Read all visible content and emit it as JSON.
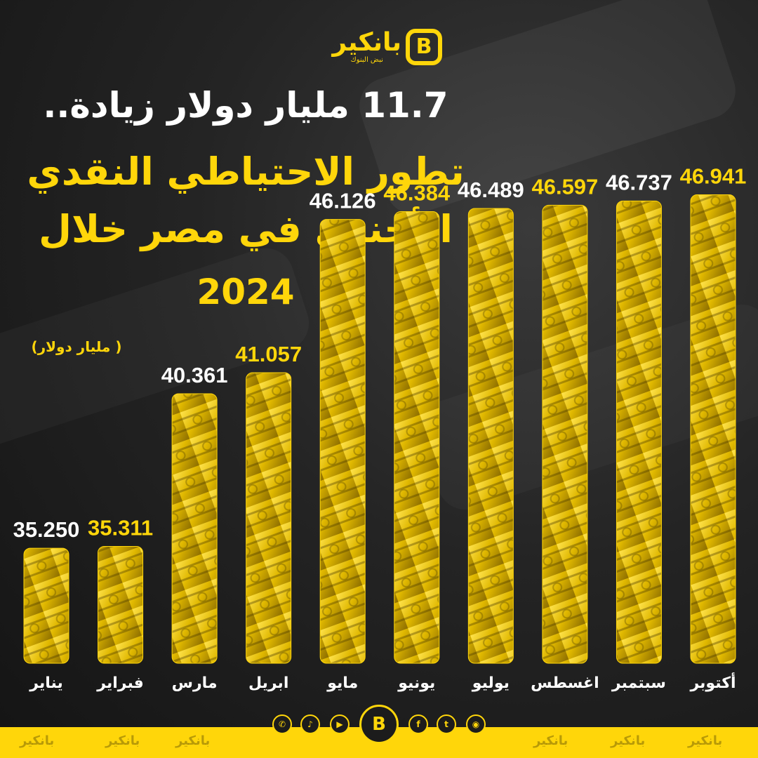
{
  "brand": {
    "name": "بانكير",
    "tagline": "نبض البنوك",
    "accent": "#ffd60a"
  },
  "title": {
    "line1": "11.7 مليار دولار زيادة..",
    "line2": "تطور الاحتياطي النقدي",
    "line3": "الأجنبي في مصر خلال",
    "line4": "2024"
  },
  "unit_label": "( مليار دولار)",
  "chart_data": {
    "type": "bar",
    "title": "تطور الاحتياطي النقدي الأجنبي في مصر خلال 2024",
    "ylabel": "( مليار دولار)",
    "categories": [
      "يناير",
      "فبراير",
      "مارس",
      "ابريل",
      "مايو",
      "يونيو",
      "يوليو",
      "اغسطس",
      "سبتمبر",
      "أكتوبر"
    ],
    "values": [
      35.25,
      35.311,
      40.361,
      41.057,
      46.126,
      46.384,
      46.489,
      46.597,
      46.737,
      46.941
    ],
    "value_labels": [
      "35.250",
      "35.311",
      "40.361",
      "41.057",
      "46.126",
      "46.384",
      "46.489",
      "46.597",
      "46.737",
      "46.941"
    ],
    "label_colors": [
      "#ffffff",
      "#ffd60a",
      "#ffffff",
      "#ffd60a",
      "#ffffff",
      "#ffd60a",
      "#ffffff",
      "#ffd60a",
      "#ffffff",
      "#ffd60a"
    ],
    "bar_color": "#ffd60a",
    "grid": false,
    "legend": "none"
  },
  "footer": {
    "socials": [
      "whatsapp-icon",
      "tiktok-icon",
      "youtube-icon",
      "facebook-icon",
      "twitter-icon",
      "instagram-icon"
    ]
  }
}
